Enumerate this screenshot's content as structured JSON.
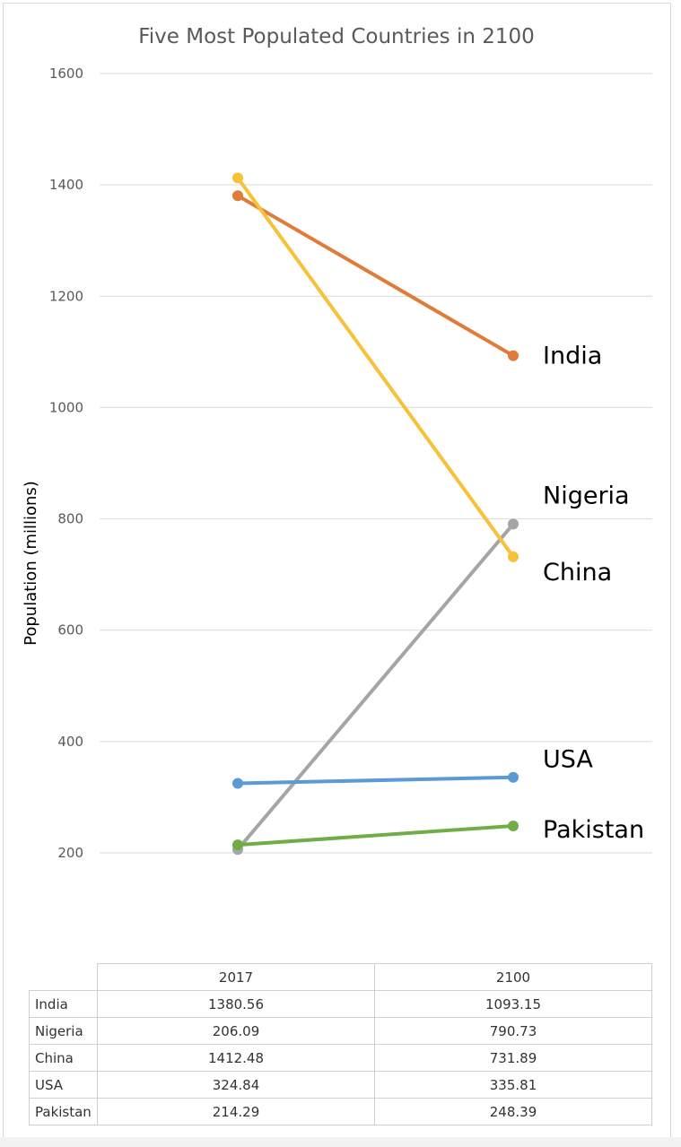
{
  "chart_data": {
    "type": "line",
    "title": "Five Most Populated Countries in 2100",
    "ylabel": "Population (millions)",
    "xlabel": "",
    "categories": [
      "2017",
      "2100"
    ],
    "ylim": [
      0,
      1600
    ],
    "yticks": [
      200,
      400,
      600,
      800,
      1000,
      1200,
      1400,
      1600
    ],
    "grid": true,
    "legend": "direct labels at right end of lines",
    "series": [
      {
        "name": "India",
        "values": [
          1380.56,
          1093.15
        ],
        "color": "#e07b39"
      },
      {
        "name": "Nigeria",
        "values": [
          206.09,
          790.73
        ],
        "color": "#a5a5a5"
      },
      {
        "name": "China",
        "values": [
          1412.48,
          731.89
        ],
        "color": "#f7c138"
      },
      {
        "name": "USA",
        "values": [
          324.84,
          335.81
        ],
        "color": "#5b9bd5"
      },
      {
        "name": "Pakistan",
        "values": [
          214.29,
          248.39
        ],
        "color": "#71ad47"
      }
    ],
    "table": {
      "columns": [
        "2017",
        "2100"
      ],
      "rows": [
        {
          "label": "India",
          "values": [
            "1380.56",
            "1093.15"
          ]
        },
        {
          "label": "Nigeria",
          "values": [
            "206.09",
            "790.73"
          ]
        },
        {
          "label": "China",
          "values": [
            "1412.48",
            "731.89"
          ]
        },
        {
          "label": "USA",
          "values": [
            "324.84",
            "335.81"
          ]
        },
        {
          "label": "Pakistan",
          "values": [
            "214.29",
            "248.39"
          ]
        }
      ]
    }
  }
}
